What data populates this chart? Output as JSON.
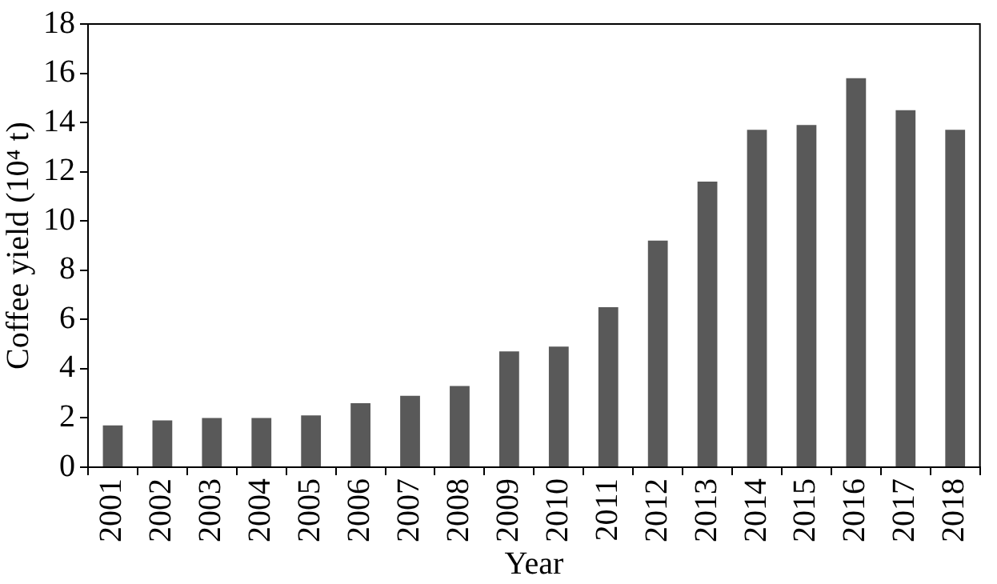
{
  "chart_data": {
    "type": "bar",
    "xlabel": "Year",
    "ylabel": "Coffee yield (10⁴ t)",
    "categories": [
      "2001",
      "2002",
      "2003",
      "2004",
      "2005",
      "2006",
      "2007",
      "2008",
      "2009",
      "2010",
      "2011",
      "2012",
      "2013",
      "2014",
      "2015",
      "2016",
      "2017",
      "2018"
    ],
    "values": [
      1.7,
      1.9,
      2.0,
      2.0,
      2.1,
      2.6,
      2.9,
      3.3,
      4.7,
      4.9,
      6.5,
      9.2,
      11.6,
      13.7,
      13.9,
      15.8,
      14.5,
      13.7
    ],
    "color": "#595959",
    "ylim": [
      0,
      18
    ],
    "yticks": [
      0,
      2,
      4,
      6,
      8,
      10,
      12,
      14,
      16,
      18
    ],
    "grid": false,
    "legend": false
  }
}
